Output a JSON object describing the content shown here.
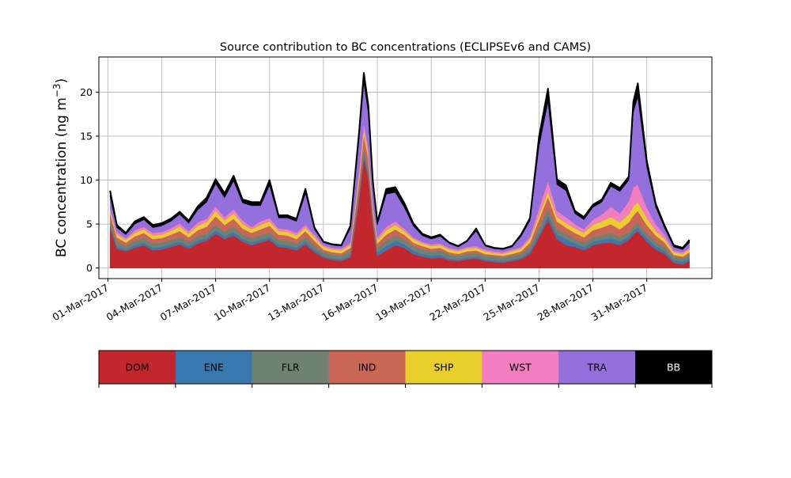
{
  "chart_data": {
    "type": "area",
    "title": "Source contribution to BC concentrations (ECLIPSEv6 and CAMS)",
    "xlabel": "",
    "ylabel": "BC concentration (ng m",
    "ylabel_sup": "−3",
    "ylabel_close": ")",
    "stacked": true,
    "grid": true,
    "xlim": [
      "2017-02-28T12:00",
      "2017-04-03T15:00"
    ],
    "ylim": [
      -1.2,
      24.0
    ],
    "yticks": [
      0,
      5,
      10,
      15,
      20
    ],
    "xticks": [
      "2017-03-01",
      "2017-03-04",
      "2017-03-07",
      "2017-03-10",
      "2017-03-13",
      "2017-03-16",
      "2017-03-19",
      "2017-03-22",
      "2017-03-25",
      "2017-03-28",
      "2017-03-31"
    ],
    "xtick_labels": [
      "01-Mar-2017",
      "04-Mar-2017",
      "07-Mar-2017",
      "10-Mar-2017",
      "13-Mar-2017",
      "16-Mar-2017",
      "19-Mar-2017",
      "22-Mar-2017",
      "25-Mar-2017",
      "28-Mar-2017",
      "31-Mar-2017"
    ],
    "x": [
      "2017-03-01T03:00",
      "2017-03-01T12:00",
      "2017-03-02T00:00",
      "2017-03-02T12:00",
      "2017-03-03T00:00",
      "2017-03-03T12:00",
      "2017-03-04T00:00",
      "2017-03-04T12:00",
      "2017-03-05T00:00",
      "2017-03-05T12:00",
      "2017-03-06T00:00",
      "2017-03-06T12:00",
      "2017-03-07T00:00",
      "2017-03-07T12:00",
      "2017-03-08T00:00",
      "2017-03-08T12:00",
      "2017-03-09T00:00",
      "2017-03-09T12:00",
      "2017-03-10T00:00",
      "2017-03-10T12:00",
      "2017-03-11T00:00",
      "2017-03-11T12:00",
      "2017-03-12T00:00",
      "2017-03-12T12:00",
      "2017-03-13T00:00",
      "2017-03-13T12:00",
      "2017-03-14T00:00",
      "2017-03-14T12:00",
      "2017-03-15T00:00",
      "2017-03-15T06:00",
      "2017-03-15T12:00",
      "2017-03-15T18:00",
      "2017-03-16T00:00",
      "2017-03-16T12:00",
      "2017-03-17T00:00",
      "2017-03-17T12:00",
      "2017-03-18T00:00",
      "2017-03-18T12:00",
      "2017-03-19T00:00",
      "2017-03-19T12:00",
      "2017-03-20T00:00",
      "2017-03-20T12:00",
      "2017-03-21T00:00",
      "2017-03-21T12:00",
      "2017-03-22T00:00",
      "2017-03-22T12:00",
      "2017-03-23T00:00",
      "2017-03-23T12:00",
      "2017-03-24T00:00",
      "2017-03-24T12:00",
      "2017-03-25T00:00",
      "2017-03-25T12:00",
      "2017-03-26T00:00",
      "2017-03-26T12:00",
      "2017-03-27T00:00",
      "2017-03-27T12:00",
      "2017-03-28T00:00",
      "2017-03-28T12:00",
      "2017-03-29T00:00",
      "2017-03-29T12:00",
      "2017-03-30T00:00",
      "2017-03-30T06:00",
      "2017-03-30T12:00",
      "2017-03-31T00:00",
      "2017-03-31T12:00",
      "2017-04-01T00:00",
      "2017-04-01T12:00",
      "2017-04-02T00:00",
      "2017-04-02T09:00"
    ],
    "series": [
      {
        "name": "DOM",
        "color": "#c1272d",
        "values": [
          4.6,
          2.2,
          1.9,
          2.3,
          2.6,
          2.0,
          2.1,
          2.4,
          2.7,
          2.2,
          2.8,
          3.1,
          3.9,
          3.3,
          3.7,
          3.0,
          2.6,
          2.9,
          3.2,
          2.4,
          2.3,
          2.0,
          2.7,
          1.8,
          1.2,
          0.9,
          0.8,
          1.2,
          8.0,
          12.5,
          10.2,
          5.0,
          1.4,
          2.0,
          2.6,
          2.3,
          1.6,
          1.3,
          1.1,
          1.2,
          0.9,
          0.8,
          1.0,
          1.1,
          0.8,
          0.7,
          0.6,
          0.8,
          1.0,
          1.6,
          3.5,
          5.5,
          3.3,
          2.6,
          2.4,
          2.0,
          2.6,
          2.8,
          2.9,
          2.6,
          3.2,
          3.8,
          4.2,
          3.0,
          2.1,
          1.6,
          0.6,
          0.4,
          0.8
        ]
      },
      {
        "name": "ENE",
        "color": "#3a78b0",
        "values": [
          0.3,
          0.3,
          0.2,
          0.3,
          0.3,
          0.3,
          0.3,
          0.3,
          0.3,
          0.3,
          0.3,
          0.3,
          0.4,
          0.3,
          0.4,
          0.3,
          0.3,
          0.3,
          0.3,
          0.3,
          0.3,
          0.3,
          0.3,
          0.3,
          0.2,
          0.2,
          0.2,
          0.3,
          0.4,
          0.5,
          0.4,
          0.3,
          0.4,
          0.5,
          0.5,
          0.4,
          0.4,
          0.3,
          0.3,
          0.3,
          0.2,
          0.2,
          0.2,
          0.2,
          0.2,
          0.2,
          0.2,
          0.2,
          0.2,
          0.3,
          0.4,
          0.5,
          0.5,
          0.7,
          0.4,
          0.4,
          0.4,
          0.4,
          0.5,
          0.4,
          0.4,
          0.4,
          0.4,
          0.4,
          0.4,
          0.3,
          0.3,
          0.3,
          0.3
        ]
      },
      {
        "name": "FLR",
        "color": "#6f8170",
        "values": [
          0.5,
          0.5,
          0.4,
          0.5,
          0.5,
          0.5,
          0.5,
          0.5,
          0.5,
          0.5,
          0.5,
          0.5,
          0.6,
          0.5,
          0.6,
          0.5,
          0.5,
          0.5,
          0.5,
          0.5,
          0.5,
          0.5,
          0.5,
          0.5,
          0.4,
          0.4,
          0.4,
          0.5,
          0.6,
          0.7,
          0.6,
          0.5,
          0.5,
          0.6,
          0.6,
          0.5,
          0.5,
          0.5,
          0.5,
          0.5,
          0.4,
          0.4,
          0.4,
          0.4,
          0.4,
          0.4,
          0.4,
          0.4,
          0.4,
          0.5,
          0.6,
          0.7,
          0.6,
          0.6,
          0.5,
          0.5,
          0.5,
          0.5,
          0.6,
          0.5,
          0.5,
          0.5,
          0.5,
          0.5,
          0.5,
          0.5,
          0.4,
          0.4,
          0.4
        ]
      },
      {
        "name": "IND",
        "color": "#c96656",
        "values": [
          0.8,
          0.5,
          0.4,
          0.5,
          0.6,
          0.5,
          0.5,
          0.6,
          0.7,
          0.5,
          0.7,
          0.8,
          1.0,
          0.8,
          0.9,
          0.7,
          0.6,
          0.7,
          0.8,
          0.6,
          0.6,
          0.5,
          0.7,
          0.5,
          0.3,
          0.3,
          0.3,
          0.3,
          1.2,
          1.5,
          1.3,
          0.7,
          0.5,
          0.7,
          0.7,
          0.6,
          0.4,
          0.4,
          0.3,
          0.3,
          0.3,
          0.2,
          0.3,
          0.3,
          0.2,
          0.2,
          0.2,
          0.2,
          0.3,
          0.5,
          1.0,
          1.4,
          0.9,
          0.7,
          0.7,
          0.6,
          0.8,
          0.9,
          1.0,
          0.9,
          1.1,
          1.3,
          1.4,
          1.0,
          0.7,
          0.5,
          0.2,
          0.2,
          0.3
        ]
      },
      {
        "name": "SHP",
        "color": "#e8cf2d",
        "values": [
          0.3,
          0.3,
          0.3,
          0.4,
          0.4,
          0.4,
          0.4,
          0.4,
          0.5,
          0.4,
          0.5,
          0.5,
          0.6,
          0.5,
          0.6,
          0.5,
          0.4,
          0.5,
          0.5,
          0.4,
          0.4,
          0.4,
          0.4,
          0.4,
          0.3,
          0.3,
          0.3,
          0.3,
          0.5,
          0.6,
          0.5,
          0.4,
          0.4,
          0.5,
          0.5,
          0.4,
          0.4,
          0.3,
          0.3,
          0.3,
          0.3,
          0.3,
          0.3,
          0.3,
          0.3,
          0.2,
          0.2,
          0.3,
          0.3,
          0.4,
          0.5,
          0.6,
          0.5,
          0.5,
          0.5,
          0.5,
          0.6,
          0.7,
          0.8,
          0.8,
          0.9,
          1.0,
          1.0,
          0.8,
          0.5,
          0.4,
          0.3,
          0.3,
          0.3
        ]
      },
      {
        "name": "WST",
        "color": "#f07ec1",
        "values": [
          0.3,
          0.3,
          0.2,
          0.3,
          0.3,
          0.3,
          0.3,
          0.3,
          0.4,
          0.3,
          0.4,
          0.4,
          0.5,
          0.4,
          0.5,
          0.4,
          0.3,
          0.4,
          0.4,
          0.3,
          0.3,
          0.3,
          0.3,
          0.3,
          0.2,
          0.2,
          0.2,
          0.3,
          0.6,
          0.8,
          0.6,
          0.4,
          0.3,
          0.4,
          0.4,
          0.3,
          0.2,
          0.2,
          0.2,
          0.2,
          0.2,
          0.2,
          0.2,
          0.2,
          0.2,
          0.2,
          0.2,
          0.2,
          0.2,
          0.3,
          0.8,
          1.2,
          0.7,
          0.7,
          0.5,
          0.4,
          0.6,
          0.8,
          1.2,
          1.0,
          1.5,
          2.2,
          2.0,
          1.2,
          0.8,
          0.5,
          0.2,
          0.2,
          0.2
        ]
      },
      {
        "name": "TRA",
        "color": "#9370db",
        "values": [
          1.3,
          0.5,
          0.4,
          0.7,
          0.8,
          0.6,
          0.7,
          0.8,
          1.0,
          0.9,
          1.4,
          1.9,
          2.6,
          2.2,
          3.2,
          2.0,
          2.4,
          1.8,
          3.7,
          1.2,
          1.3,
          1.3,
          3.6,
          0.6,
          0.3,
          0.3,
          0.3,
          1.6,
          3.7,
          4.5,
          4.0,
          2.1,
          1.4,
          3.7,
          3.3,
          2.4,
          1.3,
          0.7,
          0.6,
          0.8,
          0.5,
          0.3,
          0.6,
          1.7,
          0.4,
          0.3,
          0.3,
          0.3,
          1.2,
          1.8,
          7.0,
          9.0,
          3.0,
          3.0,
          1.2,
          1.1,
          1.4,
          1.4,
          2.3,
          2.5,
          2.4,
          8.5,
          10.0,
          4.6,
          1.9,
          0.7,
          0.4,
          0.3,
          0.6
        ]
      },
      {
        "name": "BB",
        "color": "#000000",
        "values": [
          0.7,
          0.3,
          0.2,
          0.3,
          0.3,
          0.3,
          0.3,
          0.3,
          0.3,
          0.3,
          0.4,
          0.5,
          0.5,
          0.5,
          0.6,
          0.4,
          0.4,
          0.4,
          0.6,
          0.3,
          0.3,
          0.3,
          0.5,
          0.2,
          0.1,
          0.1,
          0.1,
          0.3,
          0.8,
          1.1,
          0.9,
          0.5,
          0.3,
          0.6,
          0.6,
          0.5,
          0.3,
          0.2,
          0.2,
          0.2,
          0.1,
          0.1,
          0.1,
          0.3,
          0.1,
          0.1,
          0.1,
          0.1,
          0.2,
          0.3,
          1.1,
          1.5,
          0.6,
          0.6,
          0.3,
          0.3,
          0.3,
          0.3,
          0.4,
          0.4,
          0.4,
          1.2,
          1.5,
          0.7,
          0.4,
          0.3,
          0.2,
          0.2,
          0.3
        ]
      }
    ],
    "legend": {
      "placement": "bottom",
      "items": [
        {
          "label": "DOM",
          "color": "#c1272d",
          "text_color": "#000000"
        },
        {
          "label": "ENE",
          "color": "#3a78b0",
          "text_color": "#000000"
        },
        {
          "label": "FLR",
          "color": "#6f8170",
          "text_color": "#000000"
        },
        {
          "label": "IND",
          "color": "#c96656",
          "text_color": "#000000"
        },
        {
          "label": "SHP",
          "color": "#e8cf2d",
          "text_color": "#000000"
        },
        {
          "label": "WST",
          "color": "#f07ec1",
          "text_color": "#000000"
        },
        {
          "label": "TRA",
          "color": "#9370db",
          "text_color": "#000000"
        },
        {
          "label": "BB",
          "color": "#000000",
          "text_color": "#ffffff"
        }
      ]
    }
  }
}
